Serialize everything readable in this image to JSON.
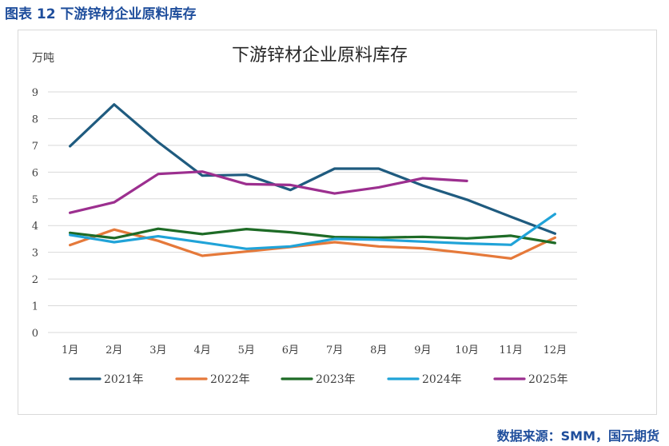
{
  "figure_caption": "图表 12 下游锌材企业原料库存",
  "source": "数据来源：SMM，国元期货",
  "chart_data": {
    "type": "line",
    "title": "下游锌材企业原料库存",
    "ylabel": "万吨",
    "xlabel": "",
    "ylim": [
      0,
      9
    ],
    "yticks": [
      "0",
      "1",
      "2",
      "3",
      "4",
      "5",
      "6",
      "7",
      "8",
      "9"
    ],
    "grid": true,
    "legend_position": "bottom",
    "categories": [
      "1月",
      "2月",
      "3月",
      "4月",
      "5月",
      "6月",
      "7月",
      "8月",
      "9月",
      "10月",
      "11月",
      "12月"
    ],
    "series": [
      {
        "name": "2021年",
        "color": "#1f5b7f",
        "values": [
          6.97,
          8.53,
          7.12,
          5.87,
          5.9,
          5.33,
          6.13,
          6.13,
          5.5,
          4.97,
          4.33,
          3.7
        ]
      },
      {
        "name": "2022年",
        "color": "#e5793a",
        "values": [
          3.27,
          3.85,
          3.43,
          2.87,
          3.03,
          3.2,
          3.38,
          3.22,
          3.15,
          2.97,
          2.77,
          3.55
        ]
      },
      {
        "name": "2023年",
        "color": "#1e6b26",
        "values": [
          3.73,
          3.53,
          3.88,
          3.68,
          3.87,
          3.75,
          3.57,
          3.55,
          3.58,
          3.52,
          3.62,
          3.35
        ]
      },
      {
        "name": "2024年",
        "color": "#20a3d8",
        "values": [
          3.65,
          3.38,
          3.6,
          3.37,
          3.13,
          3.22,
          3.5,
          3.47,
          3.4,
          3.33,
          3.28,
          4.43
        ]
      },
      {
        "name": "2025年",
        "color": "#9c2f8f",
        "values": [
          4.48,
          4.87,
          5.93,
          6.02,
          5.55,
          5.52,
          5.2,
          5.43,
          5.77,
          5.67,
          null,
          null
        ]
      }
    ]
  }
}
